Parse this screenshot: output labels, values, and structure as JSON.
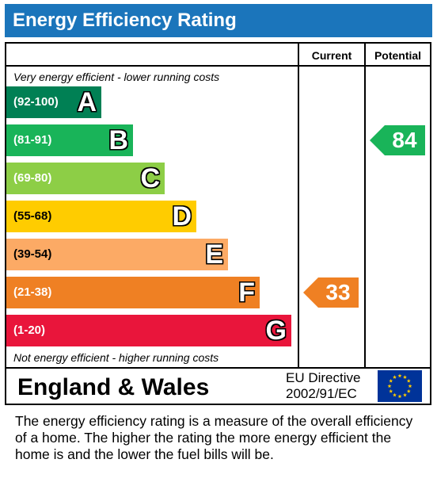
{
  "title": "Energy Efficiency Rating",
  "columns": {
    "current": "Current",
    "potential": "Potential"
  },
  "top_caption": "Very energy efficient - lower running costs",
  "bottom_caption": "Not energy efficient - higher running costs",
  "colors": {
    "title_bar": "#1b75bb",
    "A": "#008054",
    "B": "#19b459",
    "C": "#8dce46",
    "D": "#ffcc00",
    "E": "#fcaa65",
    "F": "#ef8023",
    "G": "#e9153b"
  },
  "chart_data": {
    "type": "bar",
    "bands": [
      {
        "letter": "A",
        "range": "(92-100)"
      },
      {
        "letter": "B",
        "range": "(81-91)"
      },
      {
        "letter": "C",
        "range": "(69-80)"
      },
      {
        "letter": "D",
        "range": "(55-68)"
      },
      {
        "letter": "E",
        "range": "(39-54)"
      },
      {
        "letter": "F",
        "range": "(21-38)"
      },
      {
        "letter": "G",
        "range": "(1-20)"
      }
    ],
    "current": {
      "value": "33",
      "band": "F"
    },
    "potential": {
      "value": "84",
      "band": "B"
    }
  },
  "footer": {
    "country": "England & Wales",
    "directive_line1": "EU Directive",
    "directive_line2": "2002/91/EC",
    "flag_icon": "eu-flag-icon"
  },
  "description": "The energy efficiency rating is a measure of the overall efficiency of a home.  The higher the rating the more energy efficient the home is and the lower the fuel bills will be."
}
